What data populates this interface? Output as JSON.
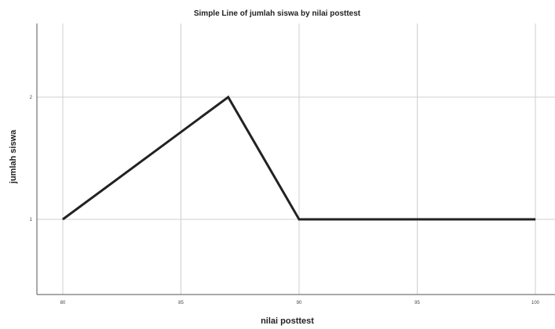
{
  "chart_data": {
    "type": "line",
    "title": "Simple Line of jumlah siswa by nilai posttest",
    "xlabel": "nilai posttest",
    "ylabel": "jumlah siswa",
    "x": [
      80,
      87,
      90,
      100
    ],
    "values": [
      1,
      2,
      1,
      1
    ],
    "xlim": [
      80,
      100
    ],
    "ylim": [
      0.4,
      2.6
    ],
    "x_ticks": [
      80,
      85,
      90,
      95,
      100
    ],
    "x_tick_labels": [
      "80",
      "85",
      "90",
      "95",
      "100"
    ],
    "y_ticks": [
      1,
      2
    ],
    "y_tick_labels": [
      "1",
      "2"
    ],
    "grid": true,
    "line_color": "#222222"
  }
}
